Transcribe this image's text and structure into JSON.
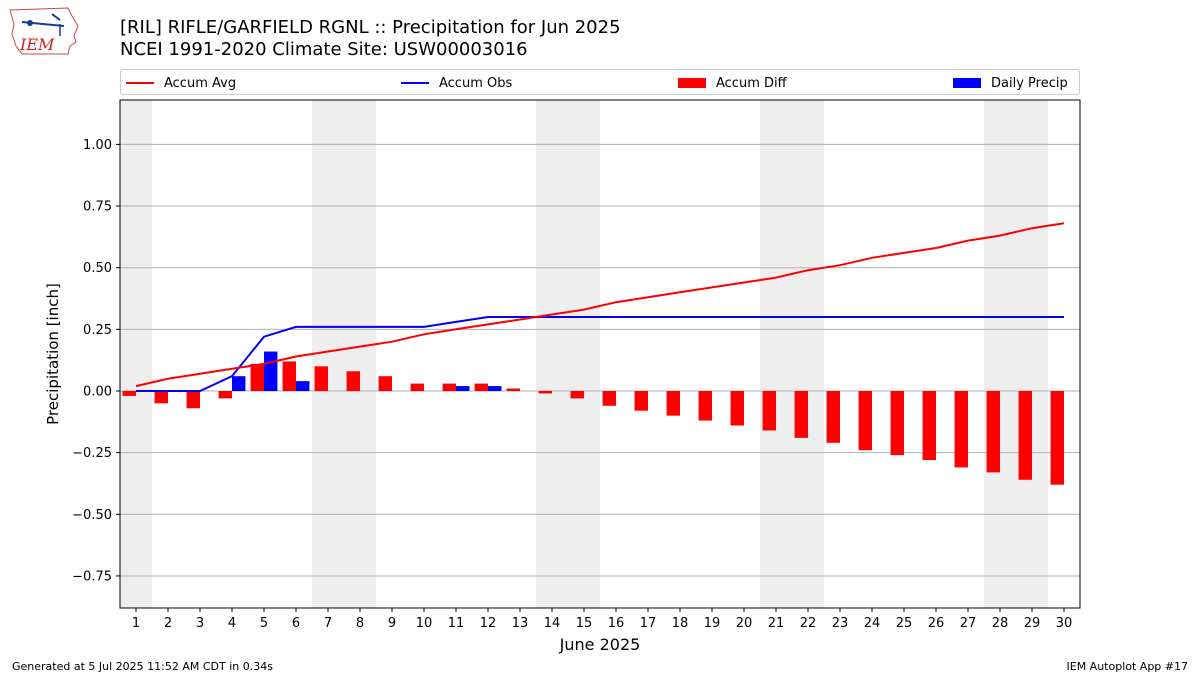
{
  "logo_text": "IEM",
  "header": {
    "title_line1": "[RIL] RIFLE/GARFIELD RGNL :: Precipitation for Jun 2025",
    "title_line2": "NCEI 1991-2020 Climate Site: USW00003016"
  },
  "footer": {
    "left": "Generated at 5 Jul 2025 11:52 AM CDT in 0.34s",
    "right": "IEM Autoplot App #17"
  },
  "chart_data": {
    "type": "bar",
    "xlabel": "June 2025",
    "ylabel": "Precipitation [inch]",
    "xlim": [
      0.5,
      30.5
    ],
    "ylim": [
      -0.88,
      1.18
    ],
    "yticks": [
      -0.75,
      -0.5,
      -0.25,
      0.0,
      0.25,
      0.5,
      0.75,
      1.0
    ],
    "ytick_labels": [
      "−0.75",
      "−0.50",
      "−0.25",
      "0.00",
      "0.25",
      "0.50",
      "0.75",
      "1.00"
    ],
    "grid": "y",
    "legend_position": "top",
    "weekend_days": [
      1,
      7,
      8,
      14,
      15,
      21,
      22,
      28,
      29
    ],
    "colors": {
      "accum_avg": "#ff0000",
      "accum_obs": "#0000ff",
      "accum_diff": "#ff0000",
      "daily_precip": "#0000ff",
      "weekend_shade": "#eeeeee",
      "grid": "#b0b0b0"
    },
    "x": [
      1,
      2,
      3,
      4,
      5,
      6,
      7,
      8,
      9,
      10,
      11,
      12,
      13,
      14,
      15,
      16,
      17,
      18,
      19,
      20,
      21,
      22,
      23,
      24,
      25,
      26,
      27,
      28,
      29,
      30
    ],
    "series": [
      {
        "name": "Accum Avg",
        "kind": "line",
        "values": [
          0.02,
          0.05,
          0.07,
          0.09,
          0.11,
          0.14,
          0.16,
          0.18,
          0.2,
          0.23,
          0.25,
          0.27,
          0.29,
          0.31,
          0.33,
          0.36,
          0.38,
          0.4,
          0.42,
          0.44,
          0.46,
          0.49,
          0.51,
          0.54,
          0.56,
          0.58,
          0.61,
          0.63,
          0.66,
          0.68
        ]
      },
      {
        "name": "Accum Obs",
        "kind": "line",
        "values": [
          0.0,
          0.0,
          0.0,
          0.06,
          0.22,
          0.26,
          0.26,
          0.26,
          0.26,
          0.26,
          0.28,
          0.3,
          0.3,
          0.3,
          0.3,
          0.3,
          0.3,
          0.3,
          0.3,
          0.3,
          0.3,
          0.3,
          0.3,
          0.3,
          0.3,
          0.3,
          0.3,
          0.3,
          0.3,
          0.3
        ]
      },
      {
        "name": "Accum Diff",
        "kind": "bar",
        "values": [
          -0.02,
          -0.05,
          -0.07,
          -0.03,
          0.11,
          0.12,
          0.1,
          0.08,
          0.06,
          0.03,
          0.03,
          0.03,
          0.01,
          -0.01,
          -0.03,
          -0.06,
          -0.08,
          -0.1,
          -0.12,
          -0.14,
          -0.16,
          -0.19,
          -0.21,
          -0.24,
          -0.26,
          -0.28,
          -0.31,
          -0.33,
          -0.36,
          -0.38
        ]
      },
      {
        "name": "Daily Precip",
        "kind": "bar",
        "values": [
          0,
          0,
          0,
          0.06,
          0.16,
          0.04,
          0,
          0,
          0,
          0,
          0.02,
          0.02,
          0,
          0,
          0,
          0,
          0,
          0,
          0,
          0,
          0,
          0,
          0,
          0,
          0,
          0,
          0,
          0,
          0,
          0
        ]
      }
    ]
  }
}
